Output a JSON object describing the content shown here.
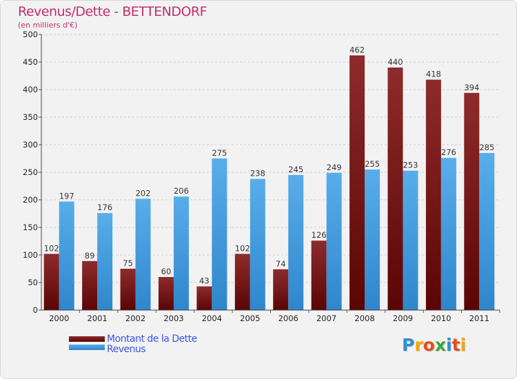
{
  "header": {
    "title": "Revenus/Dette - BETTENDORF",
    "subtitle": "(en milliers d'€)"
  },
  "chart_data": {
    "type": "bar",
    "categories": [
      "2000",
      "2001",
      "2002",
      "2003",
      "2004",
      "2005",
      "2006",
      "2007",
      "2008",
      "2009",
      "2010",
      "2011"
    ],
    "series": [
      {
        "name": "Montant de la Dette",
        "values": [
          102,
          89,
          75,
          60,
          43,
          102,
          74,
          126,
          462,
          440,
          418,
          394
        ],
        "color": "#7a1010"
      },
      {
        "name": "Revenus",
        "values": [
          197,
          176,
          202,
          206,
          275,
          238,
          245,
          249,
          255,
          253,
          276,
          285
        ],
        "color": "#3e9be3"
      }
    ],
    "yticks": [
      0,
      50,
      100,
      150,
      200,
      250,
      300,
      350,
      400,
      450,
      500
    ],
    "ylim": [
      0,
      500
    ],
    "grid": true,
    "legend_position": "bottom-left"
  },
  "legend": {
    "items": [
      {
        "label": "Montant de la Dette",
        "color": "#6b0e0e"
      },
      {
        "label": "Revenus",
        "color": "#3e9be3"
      }
    ]
  },
  "logo": {
    "text": "Proxiti",
    "letters": [
      {
        "ch": "P",
        "color": "#2e8fd6"
      },
      {
        "ch": "r",
        "color": "#f2a900"
      },
      {
        "ch": "o",
        "color": "#e84c1a"
      },
      {
        "ch": "x",
        "color": "#3aa83a"
      },
      {
        "ch": "i",
        "color": "#2e8fd6"
      },
      {
        "ch": "t",
        "color": "#e84c1a"
      },
      {
        "ch": "i",
        "color": "#f2a900"
      }
    ]
  }
}
